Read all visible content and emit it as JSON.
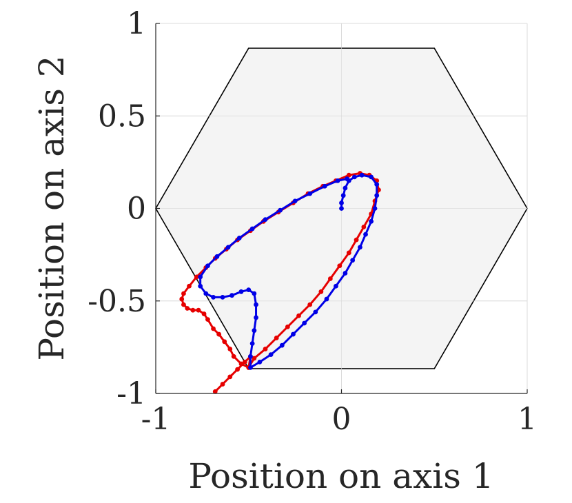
{
  "chart_data": {
    "type": "scatter",
    "xlabel": "Position on axis 1",
    "ylabel": "Position on axis 2",
    "xlim": [
      -1,
      1
    ],
    "ylim": [
      -1,
      1
    ],
    "xticks": [
      -1,
      0,
      1
    ],
    "yticks": [
      -1,
      -0.5,
      0,
      0.5,
      1
    ],
    "xtick_labels": [
      "-1",
      "0",
      "1"
    ],
    "ytick_labels": [
      "-1",
      "-0.5",
      "0",
      "0.5",
      "1"
    ],
    "grid": true,
    "region": {
      "shape": "hexagon",
      "fill": "#f2f2f2",
      "stroke": "#000000",
      "vertices": [
        [
          1,
          0
        ],
        [
          0.5,
          0.866
        ],
        [
          -0.5,
          0.866
        ],
        [
          -1,
          0
        ],
        [
          -0.5,
          -0.866
        ],
        [
          0.5,
          -0.866
        ]
      ]
    },
    "series": [
      {
        "color": "#e60000",
        "points": [
          [
            -0.68,
            -0.99
          ],
          [
            -0.64,
            -0.95
          ],
          [
            -0.6,
            -0.91
          ],
          [
            -0.56,
            -0.87
          ],
          [
            -0.52,
            -0.83
          ],
          [
            -0.49,
            -0.8
          ],
          [
            -0.5,
            -0.86
          ],
          [
            -0.54,
            -0.84
          ],
          [
            -0.58,
            -0.8
          ],
          [
            -0.6,
            -0.76
          ],
          [
            -0.63,
            -0.72
          ],
          [
            -0.66,
            -0.68
          ],
          [
            -0.69,
            -0.65
          ],
          [
            -0.72,
            -0.6
          ],
          [
            -0.74,
            -0.57
          ],
          [
            -0.77,
            -0.55
          ],
          [
            -0.8,
            -0.55
          ],
          [
            -0.83,
            -0.54
          ],
          [
            -0.85,
            -0.52
          ],
          [
            -0.86,
            -0.49
          ],
          [
            -0.85,
            -0.46
          ],
          [
            -0.82,
            -0.42
          ],
          [
            -0.78,
            -0.37
          ],
          [
            -0.73,
            -0.32
          ],
          [
            -0.68,
            -0.27
          ],
          [
            -0.62,
            -0.22
          ],
          [
            -0.56,
            -0.17
          ],
          [
            -0.49,
            -0.12
          ],
          [
            -0.42,
            -0.07
          ],
          [
            -0.34,
            -0.02
          ],
          [
            -0.26,
            0.03
          ],
          [
            -0.18,
            0.08
          ],
          [
            -0.1,
            0.12
          ],
          [
            -0.03,
            0.15
          ],
          [
            0.04,
            0.18
          ],
          [
            0.1,
            0.19
          ],
          [
            0.15,
            0.18
          ],
          [
            0.19,
            0.15
          ],
          [
            0.2,
            0.1
          ],
          [
            0.18,
            0.04
          ],
          [
            0.16,
            -0.03
          ],
          [
            0.12,
            -0.1
          ],
          [
            0.08,
            -0.17
          ],
          [
            0.04,
            -0.24
          ],
          [
            -0.01,
            -0.31
          ],
          [
            -0.06,
            -0.38
          ],
          [
            -0.11,
            -0.45
          ],
          [
            -0.17,
            -0.52
          ],
          [
            -0.23,
            -0.58
          ],
          [
            -0.29,
            -0.64
          ],
          [
            -0.35,
            -0.7
          ],
          [
            -0.41,
            -0.76
          ],
          [
            -0.47,
            -0.81
          ],
          [
            -0.5,
            -0.86
          ]
        ]
      },
      {
        "color": "#0000e6",
        "points": [
          [
            0.0,
            0.0
          ],
          [
            0.0,
            0.03
          ],
          [
            0.01,
            0.07
          ],
          [
            0.02,
            0.11
          ],
          [
            0.04,
            0.15
          ],
          [
            0.07,
            0.17
          ],
          [
            0.11,
            0.18
          ],
          [
            0.16,
            0.17
          ],
          [
            0.19,
            0.13
          ],
          [
            0.19,
            0.07
          ],
          [
            0.18,
            0.0
          ],
          [
            0.16,
            -0.07
          ],
          [
            0.13,
            -0.14
          ],
          [
            0.1,
            -0.21
          ],
          [
            0.06,
            -0.28
          ],
          [
            0.02,
            -0.35
          ],
          [
            -0.03,
            -0.42
          ],
          [
            -0.08,
            -0.49
          ],
          [
            -0.14,
            -0.56
          ],
          [
            -0.2,
            -0.62
          ],
          [
            -0.26,
            -0.68
          ],
          [
            -0.32,
            -0.74
          ],
          [
            -0.38,
            -0.79
          ],
          [
            -0.44,
            -0.83
          ],
          [
            -0.49,
            -0.86
          ],
          [
            -0.49,
            -0.8
          ],
          [
            -0.48,
            -0.73
          ],
          [
            -0.47,
            -0.66
          ],
          [
            -0.46,
            -0.59
          ],
          [
            -0.46,
            -0.52
          ],
          [
            -0.47,
            -0.46
          ],
          [
            -0.5,
            -0.44
          ],
          [
            -0.54,
            -0.45
          ],
          [
            -0.59,
            -0.47
          ],
          [
            -0.64,
            -0.48
          ],
          [
            -0.69,
            -0.48
          ],
          [
            -0.73,
            -0.46
          ],
          [
            -0.76,
            -0.42
          ],
          [
            -0.76,
            -0.37
          ],
          [
            -0.72,
            -0.31
          ],
          [
            -0.67,
            -0.26
          ],
          [
            -0.61,
            -0.21
          ],
          [
            -0.55,
            -0.16
          ],
          [
            -0.48,
            -0.11
          ],
          [
            -0.41,
            -0.06
          ],
          [
            -0.33,
            -0.01
          ],
          [
            -0.25,
            0.04
          ],
          [
            -0.17,
            0.08
          ],
          [
            -0.09,
            0.12
          ],
          [
            -0.02,
            0.15
          ],
          [
            0.03,
            0.16
          ]
        ]
      }
    ]
  }
}
